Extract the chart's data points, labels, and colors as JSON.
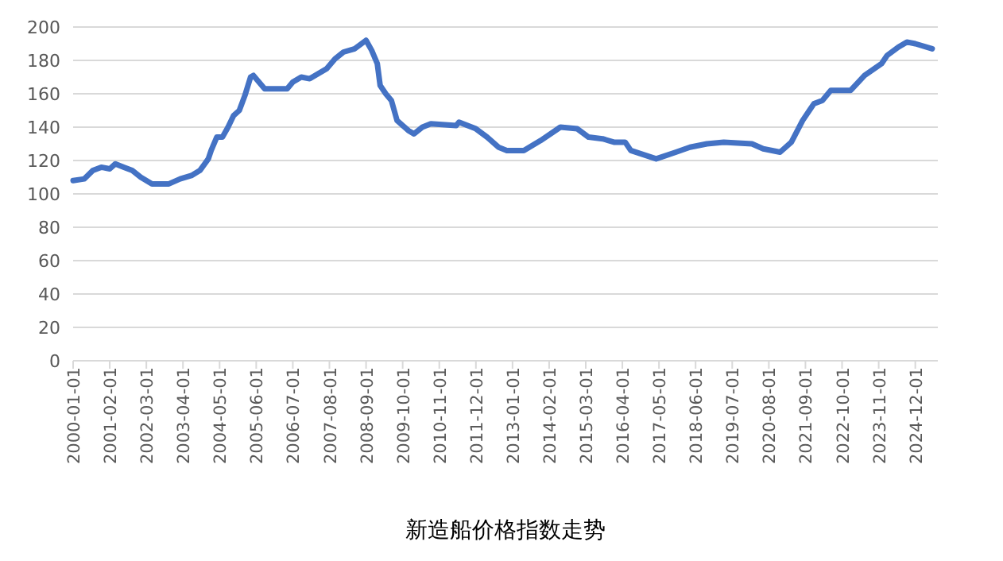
{
  "chart_data": {
    "type": "line",
    "title": "新造船价格指数走势",
    "x": [
      "2000-01",
      "2000-05",
      "2000-08",
      "2000-11",
      "2001-02",
      "2001-04",
      "2001-07",
      "2001-10",
      "2002-01",
      "2002-05",
      "2002-11",
      "2003-03",
      "2003-07",
      "2003-10",
      "2004-01",
      "2004-02",
      "2004-04",
      "2004-06",
      "2004-08",
      "2004-10",
      "2004-12",
      "2005-02",
      "2005-04",
      "2005-05",
      "2005-09",
      "2006-05",
      "2006-07",
      "2006-10",
      "2007-01",
      "2007-04",
      "2007-07",
      "2007-10",
      "2008-01",
      "2008-05",
      "2008-09",
      "2008-11",
      "2009-01",
      "2009-02",
      "2009-04",
      "2009-06",
      "2009-08",
      "2009-12",
      "2010-02",
      "2010-05",
      "2010-08",
      "2011-05",
      "2011-06",
      "2011-12",
      "2012-04",
      "2012-08",
      "2012-11",
      "2013-05",
      "2013-11",
      "2014-06",
      "2014-12",
      "2015-04",
      "2015-09",
      "2016-01",
      "2016-05",
      "2016-07",
      "2017-04",
      "2017-11",
      "2018-04",
      "2018-10",
      "2019-04",
      "2020-02",
      "2020-06",
      "2020-12",
      "2021-04",
      "2021-08",
      "2021-12",
      "2022-03",
      "2022-06",
      "2023-01",
      "2023-06",
      "2023-12",
      "2024-02",
      "2024-06",
      "2024-09",
      "2024-12",
      "2025-06"
    ],
    "series": [
      {
        "color": "#4472c4",
        "values": [
          108,
          109,
          114,
          116,
          115,
          118,
          116,
          114,
          110,
          106,
          106,
          109,
          111,
          114,
          121,
          126,
          134,
          134,
          140,
          147,
          150,
          159,
          170,
          171,
          163,
          163,
          167,
          170,
          169,
          172,
          175,
          181,
          185,
          187,
          192,
          186,
          178,
          165,
          160,
          156,
          144,
          138,
          136,
          140,
          142,
          141,
          143,
          139,
          134,
          128,
          126,
          126,
          132,
          140,
          139,
          134,
          133,
          131,
          131,
          126,
          121,
          125,
          128,
          130,
          131,
          130,
          127,
          125,
          131,
          144,
          154,
          156,
          162,
          162,
          171,
          178,
          183,
          188,
          191,
          190,
          187
        ]
      }
    ],
    "xlim": [
      "2000-01",
      "2025-08"
    ],
    "xticks": [
      "2000-01-01",
      "2001-02-01",
      "2002-03-01",
      "2003-04-01",
      "2004-05-01",
      "2005-06-01",
      "2006-07-01",
      "2007-08-01",
      "2008-09-01",
      "2009-10-01",
      "2010-11-01",
      "2011-12-01",
      "2013-01-01",
      "2014-02-01",
      "2015-03-01",
      "2016-04-01",
      "2017-05-01",
      "2018-06-01",
      "2019-07-01",
      "2020-08-01",
      "2021-09-01",
      "2022-10-01",
      "2023-11-01",
      "2024-12-01"
    ],
    "ylim": [
      0,
      200
    ],
    "yticks": [
      0,
      20,
      40,
      60,
      80,
      100,
      120,
      140,
      160,
      180,
      200
    ],
    "grid": "y"
  }
}
